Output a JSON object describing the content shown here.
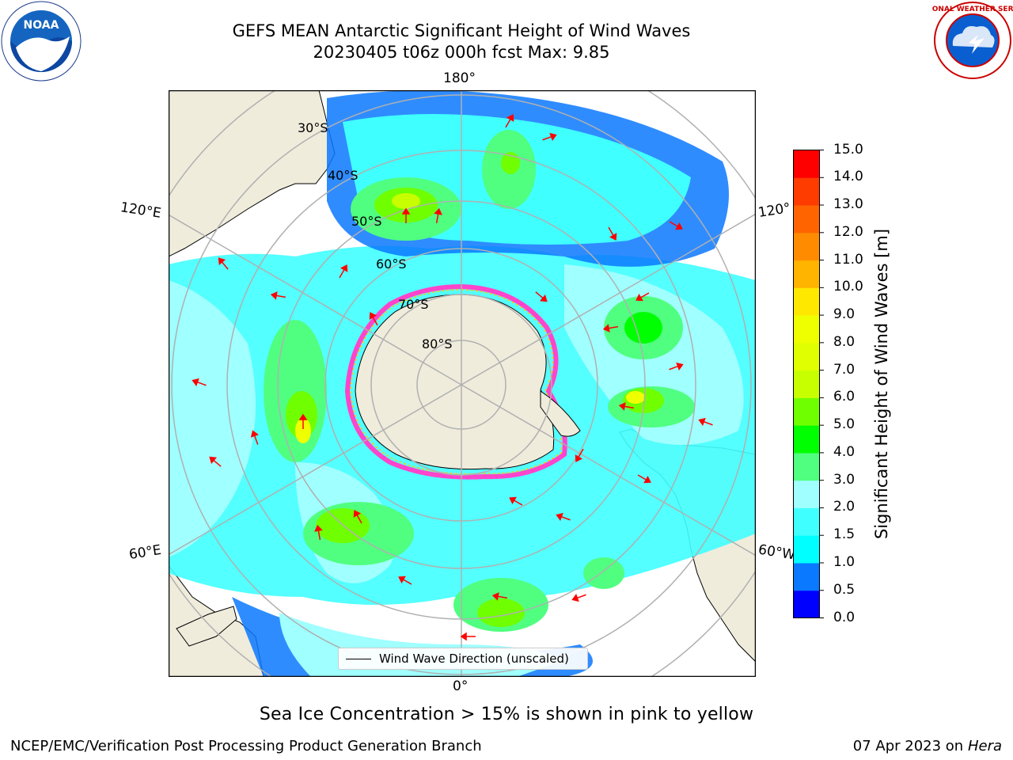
{
  "header": {
    "title_line1": "GEFS MEAN Antarctic Significant Height of Wind Waves",
    "title_line2": "20230405 t06z 000h fcst   Max: 9.85"
  },
  "logos": {
    "noaa_text": "NOAA",
    "nws_text": "NATIONAL WEATHER SERVICE"
  },
  "map": {
    "longitude_labels": {
      "top": "180°",
      "bottom": "0°",
      "upper_left": "120°E",
      "upper_right": "120°",
      "lower_left": "60°E",
      "lower_right": "60°W"
    },
    "latitude_labels": [
      "30°S",
      "40°S",
      "50°S",
      "60°S",
      "70°S",
      "80°S"
    ],
    "legend_entry": "Wind Wave Direction (unscaled)",
    "colors": {
      "land": "#efecdc",
      "ocean": "#ffffff",
      "arrows": "#ff0000",
      "graticule": "#b0b0b0",
      "sea_ice_pink": "#ff44cc",
      "sea_ice_yellow": "#ffcc00"
    }
  },
  "colorbar": {
    "label": "Significant Height of Wind Waves [m]",
    "ticks": [
      "15.0",
      "14.0",
      "13.0",
      "12.0",
      "11.0",
      "10.0",
      "9.0",
      "8.0",
      "7.0",
      "6.0",
      "5.0",
      "4.0",
      "3.0",
      "2.0",
      "1.5",
      "1.0",
      "0.5",
      "0.0"
    ],
    "bins": [
      {
        "min": 0.0,
        "max": 0.5,
        "color": "#0000ff"
      },
      {
        "min": 0.5,
        "max": 1.0,
        "color": "#0a78ff"
      },
      {
        "min": 1.0,
        "max": 1.5,
        "color": "#00ffff"
      },
      {
        "min": 1.5,
        "max": 2.0,
        "color": "#40ffff"
      },
      {
        "min": 2.0,
        "max": 3.0,
        "color": "#a0ffff"
      },
      {
        "min": 3.0,
        "max": 4.0,
        "color": "#50ff80"
      },
      {
        "min": 4.0,
        "max": 5.0,
        "color": "#00ff00"
      },
      {
        "min": 5.0,
        "max": 6.0,
        "color": "#70ff00"
      },
      {
        "min": 6.0,
        "max": 7.0,
        "color": "#c8ff00"
      },
      {
        "min": 7.0,
        "max": 8.0,
        "color": "#e0ff00"
      },
      {
        "min": 8.0,
        "max": 9.0,
        "color": "#f0ff00"
      },
      {
        "min": 9.0,
        "max": 10.0,
        "color": "#ffe800"
      },
      {
        "min": 10.0,
        "max": 11.0,
        "color": "#ffb400"
      },
      {
        "min": 11.0,
        "max": 12.0,
        "color": "#ff8c00"
      },
      {
        "min": 12.0,
        "max": 13.0,
        "color": "#ff6400"
      },
      {
        "min": 13.0,
        "max": 14.0,
        "color": "#ff3c00"
      },
      {
        "min": 14.0,
        "max": 15.0,
        "color": "#ff0000"
      }
    ]
  },
  "footer": {
    "subtitle": "Sea Ice Concentration > 15% is shown in pink to yellow",
    "left": "NCEP/EMC/Verification Post Processing Product Generation Branch",
    "right_date": "07 Apr 2023 on ",
    "right_machine": "Hera"
  }
}
